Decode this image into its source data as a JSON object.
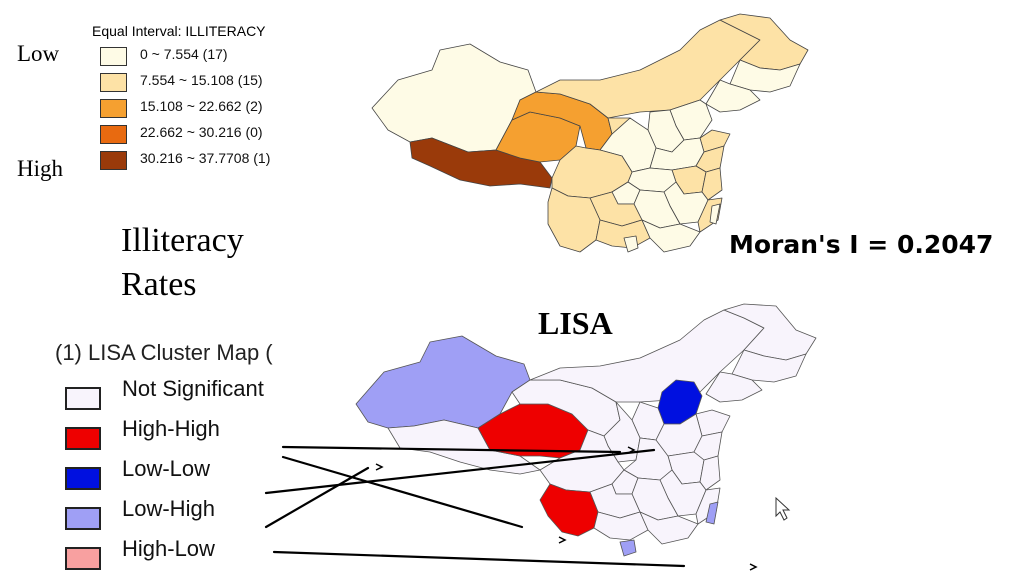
{
  "illiteracy": {
    "low_label": "Low",
    "high_label": "High",
    "legend_title": "Equal Interval: ILLITERACY",
    "classes": [
      {
        "label": "0 ~ 7.554 (17)",
        "color": "#fefbe6"
      },
      {
        "label": "7.554 ~ 15.108 (15)",
        "color": "#fde2a6"
      },
      {
        "label": "15.108 ~ 22.662 (2)",
        "color": "#f5a030"
      },
      {
        "label": "22.662 ~ 30.216 (0)",
        "color": "#e86a10"
      },
      {
        "label": "30.216 ~ 37.7708 (1)",
        "color": "#9a3a0a"
      }
    ],
    "caption_line1": "Illiteracy",
    "caption_line2": "Rates",
    "morans_i": "Moran's I = 0.2047"
  },
  "lisa": {
    "heading": "LISA",
    "legend_title": "(1) LISA Cluster Map (",
    "categories": [
      {
        "label": "Not Significant",
        "color": "#f8f4fc"
      },
      {
        "label": "High-High",
        "color": "#ee0000"
      },
      {
        "label": "Low-Low",
        "color": "#0010e0"
      },
      {
        "label": "Low-High",
        "color": "#9f9ff5"
      },
      {
        "label": "High-Low",
        "color": "#f8a0a0"
      }
    ]
  }
}
